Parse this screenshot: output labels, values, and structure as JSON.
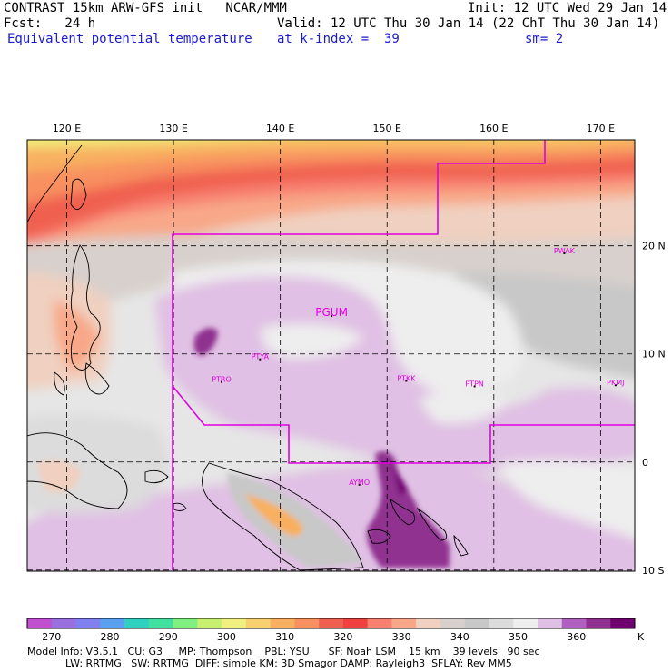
{
  "header": {
    "line1_left": "CONTRAST 15km ARW-GFS init   NCAR/MMM",
    "line1_right": "Init: 12 UTC Wed 29 Jan 14",
    "line2_left": "Fcst:   24 h",
    "line2_right": "Valid: 12 UTC Thu 30 Jan 14 (22 ChT Thu 30 Jan 14)",
    "line3_left": "Equivalent potential temperature",
    "line3_mid": "at k-index =  39",
    "line3_right": "sm= 2"
  },
  "map": {
    "lon_labels": [
      "120 E",
      "130 E",
      "140 E",
      "150 E",
      "160 E",
      "170 E"
    ],
    "lon_values": [
      120,
      130,
      140,
      150,
      160,
      170
    ],
    "lat_labels": [
      "20 N",
      "10 N",
      "0",
      "10 S"
    ],
    "lat_values": [
      20,
      10,
      0,
      -10
    ],
    "lon_range": [
      116.3,
      173.2
    ],
    "lat_range": [
      -10.1,
      29.8
    ],
    "stations": [
      {
        "id": "PWAK",
        "lon": 166.6,
        "lat": 19.3
      },
      {
        "id": "PGUM",
        "lon": 144.8,
        "lat": 13.5
      },
      {
        "id": "PTYA",
        "lon": 138.1,
        "lat": 9.5
      },
      {
        "id": "PTRO",
        "lon": 134.5,
        "lat": 7.4
      },
      {
        "id": "PTKK",
        "lon": 151.8,
        "lat": 7.5
      },
      {
        "id": "PTPN",
        "lon": 158.2,
        "lat": 7.0
      },
      {
        "id": "PKMJ",
        "lon": 171.4,
        "lat": 7.1
      },
      {
        "id": "AYMO",
        "lon": 147.4,
        "lat": -2.1
      }
    ],
    "boundary_color": "#e000e0"
  },
  "colorbar": {
    "unit": "K",
    "labels": [
      "270",
      "280",
      "290",
      "300",
      "310",
      "320",
      "330",
      "340",
      "350",
      "360"
    ],
    "colors": [
      "#c050d0",
      "#9a70e0",
      "#8080f0",
      "#5aa0f0",
      "#30d0c0",
      "#40e0a0",
      "#80f080",
      "#c8f070",
      "#f0f080",
      "#f8d070",
      "#f8b060",
      "#f89060",
      "#f06050",
      "#f04040",
      "#f88070",
      "#f8a888",
      "#f0d0c0",
      "#d8d0cc",
      "#c8c8c8",
      "#dcdcdc",
      "#eeeeee",
      "#e0c0e4",
      "#b060c0",
      "#903090",
      "#700070"
    ]
  },
  "footer": {
    "line1": "Model Info: V3.5.1   CU: G3     MP: Thompson    PBL: YSU      SF: Noah LSM    15 km    39 levels   90 sec",
    "line2": "LW: RRTMG   SW: RRTMG  DIFF: simple KM: 3D Smagor DAMP: Rayleigh3  SFLAY: Rev MM5"
  }
}
